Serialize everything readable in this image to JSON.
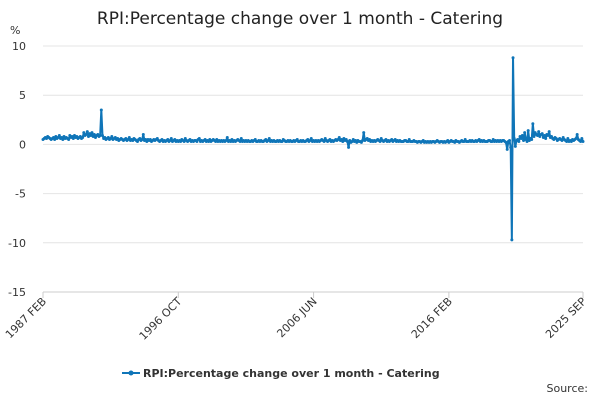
{
  "chart_data": {
    "type": "line",
    "title": "RPI:Percentage change over 1 month - Catering",
    "y_unit": "%",
    "source": "Source:",
    "ylim": [
      -15,
      10
    ],
    "yticks": [
      -15,
      -10,
      -5,
      0,
      5,
      10
    ],
    "grid": true,
    "legend": "bottom",
    "categories": [
      "1987 FEB",
      null,
      null,
      null,
      null,
      null,
      null,
      null,
      null,
      null,
      null,
      null,
      null,
      null,
      null,
      null,
      null,
      null,
      null,
      null,
      null,
      null,
      null,
      null,
      null,
      null,
      null,
      null,
      null,
      null,
      null,
      null,
      null,
      null,
      null,
      null,
      null,
      null,
      null,
      null,
      null,
      null,
      null,
      null,
      null,
      null,
      null,
      null,
      null,
      null,
      null,
      null,
      null,
      null,
      null,
      null,
      null,
      null,
      null,
      null,
      null,
      null,
      null,
      null,
      null,
      null,
      null,
      null,
      null,
      null,
      null,
      null,
      null,
      null,
      null,
      null,
      null,
      null,
      null,
      null,
      null,
      null,
      null,
      null,
      null,
      null,
      null,
      null,
      null,
      null,
      null,
      null,
      null,
      null,
      null,
      null,
      null,
      null,
      null,
      null,
      null,
      null,
      null,
      null,
      null,
      null,
      null,
      null,
      null,
      null,
      null,
      null,
      null,
      null,
      null,
      null,
      "1996 OCT",
      null,
      null,
      null,
      null,
      null,
      null,
      null,
      null,
      null,
      null,
      null,
      null,
      null,
      null,
      null,
      null,
      null,
      null,
      null,
      null,
      null,
      null,
      null,
      null,
      null,
      null,
      null,
      null,
      null,
      null,
      null,
      null,
      null,
      null,
      null,
      null,
      null,
      null,
      null,
      null,
      null,
      null,
      null,
      null,
      null,
      null,
      null,
      null,
      null,
      null,
      null,
      null,
      null,
      null,
      null,
      null,
      null,
      null,
      null,
      null,
      null,
      null,
      null,
      null,
      null,
      null,
      null,
      null,
      null,
      null,
      null,
      null,
      null,
      null,
      null,
      null,
      null,
      null,
      null,
      null,
      null,
      null,
      null,
      null,
      null,
      null,
      null,
      null,
      null,
      null,
      null,
      null,
      null,
      null,
      null,
      null,
      null,
      null,
      null,
      null,
      null,
      null,
      null,
      null,
      null,
      null,
      null,
      null,
      null,
      null,
      null,
      null,
      null,
      null,
      null,
      "2006 JUN",
      null,
      null,
      null,
      null,
      null,
      null,
      null,
      null,
      null,
      null,
      null,
      null,
      null,
      null,
      null,
      null,
      null,
      null,
      null,
      null,
      null,
      null,
      null,
      null,
      null,
      null,
      null,
      null,
      null,
      null,
      null,
      null,
      null,
      null,
      null,
      null,
      null,
      null,
      null,
      null,
      null,
      null,
      null,
      null,
      null,
      null,
      null,
      null,
      null,
      null,
      null,
      null,
      null,
      null,
      null,
      null,
      null,
      null,
      null,
      null,
      null,
      null,
      null,
      null,
      null,
      null,
      null,
      null,
      null,
      null,
      null,
      null,
      null,
      null,
      null,
      null,
      null,
      null,
      null,
      null,
      null,
      null,
      null,
      null,
      null,
      null,
      null,
      null,
      null,
      null,
      null,
      null,
      null,
      null,
      null,
      null,
      null,
      null,
      null,
      null,
      null,
      null,
      null,
      null,
      null,
      null,
      null,
      null,
      null,
      null,
      null,
      null,
      null,
      null,
      null,
      "2016 FEB",
      null,
      null,
      null,
      null,
      null,
      null,
      null,
      null,
      null,
      null,
      null,
      null,
      null,
      null,
      null,
      null,
      null,
      null,
      null,
      null,
      null,
      null,
      null,
      null,
      null,
      null,
      null,
      null,
      null,
      null,
      null,
      null,
      null,
      null,
      null,
      null,
      null,
      null,
      null,
      null,
      null,
      null,
      null,
      null,
      null,
      null,
      null,
      null,
      null,
      null,
      null,
      null,
      null,
      null,
      null,
      null,
      null,
      null,
      null,
      null,
      null,
      null,
      null,
      null,
      null,
      null,
      null,
      null,
      null,
      null,
      null,
      null,
      null,
      null,
      null,
      null,
      null,
      null,
      null,
      null,
      null,
      null,
      null,
      null,
      null,
      null,
      null,
      null,
      null,
      null,
      null,
      null,
      null,
      null,
      null,
      null,
      null,
      null,
      null,
      null,
      null,
      null,
      null,
      null,
      null,
      null,
      null,
      null,
      null,
      null,
      null,
      null,
      null,
      null,
      "2025 SEP"
    ],
    "series": [
      {
        "name": "RPI:Percentage change over 1 month - Catering",
        "color": "#0f75b8",
        "values": [
          0.5,
          0.6,
          0.7,
          0.6,
          0.8,
          0.7,
          0.6,
          0.5,
          0.6,
          0.7,
          0.5,
          0.8,
          0.6,
          0.7,
          0.9,
          0.6,
          0.7,
          0.5,
          0.8,
          0.6,
          0.7,
          0.6,
          0.5,
          0.9,
          0.7,
          0.8,
          0.6,
          0.9,
          0.7,
          0.8,
          0.6,
          0.7,
          0.8,
          0.6,
          0.7,
          1.2,
          0.9,
          1.0,
          1.3,
          0.8,
          1.1,
          0.9,
          1.2,
          0.8,
          1.0,
          0.7,
          0.9,
          1.0,
          0.8,
          0.9,
          3.5,
          0.9,
          0.6,
          0.7,
          0.5,
          0.6,
          0.7,
          0.5,
          0.6,
          0.8,
          0.5,
          0.6,
          0.7,
          0.5,
          0.6,
          0.4,
          0.5,
          0.6,
          0.5,
          0.4,
          0.5,
          0.6,
          0.4,
          0.5,
          0.7,
          0.4,
          0.5,
          0.4,
          0.6,
          0.5,
          0.4,
          0.3,
          0.5,
          0.6,
          0.4,
          0.5,
          1.0,
          0.4,
          0.5,
          0.3,
          0.5,
          0.4,
          0.5,
          0.3,
          0.4,
          0.5,
          0.4,
          0.5,
          0.6,
          0.4,
          0.3,
          0.4,
          0.5,
          0.3,
          0.4,
          0.3,
          0.4,
          0.5,
          0.3,
          0.4,
          0.6,
          0.3,
          0.4,
          0.5,
          0.3,
          0.4,
          0.3,
          0.4,
          0.3,
          0.5,
          0.4,
          0.3,
          0.6,
          0.4,
          0.3,
          0.4,
          0.5,
          0.3,
          0.4,
          0.3,
          0.4,
          0.4,
          0.3,
          0.5,
          0.6,
          0.3,
          0.4,
          0.3,
          0.4,
          0.5,
          0.3,
          0.4,
          0.3,
          0.5,
          0.3,
          0.4,
          0.5,
          0.4,
          0.3,
          0.5,
          0.3,
          0.4,
          0.3,
          0.4,
          0.3,
          0.4,
          0.3,
          0.4,
          0.7,
          0.3,
          0.4,
          0.3,
          0.5,
          0.3,
          0.4,
          0.3,
          0.4,
          0.5,
          0.4,
          0.3,
          0.6,
          0.3,
          0.4,
          0.3,
          0.4,
          0.3,
          0.4,
          0.3,
          0.3,
          0.4,
          0.3,
          0.4,
          0.5,
          0.3,
          0.3,
          0.4,
          0.3,
          0.4,
          0.3,
          0.3,
          0.4,
          0.5,
          0.3,
          0.4,
          0.6,
          0.3,
          0.4,
          0.3,
          0.4,
          0.3,
          0.3,
          0.4,
          0.3,
          0.4,
          0.3,
          0.3,
          0.5,
          0.4,
          0.3,
          0.3,
          0.4,
          0.3,
          0.4,
          0.3,
          0.3,
          0.4,
          0.3,
          0.4,
          0.5,
          0.3,
          0.3,
          0.4,
          0.3,
          0.4,
          0.3,
          0.3,
          0.4,
          0.5,
          0.3,
          0.4,
          0.6,
          0.3,
          0.4,
          0.3,
          0.4,
          0.3,
          0.4,
          0.3,
          0.4,
          0.5,
          0.4,
          0.3,
          0.6,
          0.4,
          0.3,
          0.4,
          0.5,
          0.3,
          0.4,
          0.3,
          0.4,
          0.5,
          0.4,
          0.5,
          0.7,
          0.4,
          0.5,
          0.3,
          0.6,
          0.4,
          0.5,
          0.3,
          -0.3,
          0.4,
          0.2,
          0.3,
          0.5,
          0.3,
          0.4,
          0.2,
          0.4,
          0.3,
          0.3,
          0.2,
          0.4,
          1.2,
          0.4,
          0.5,
          0.6,
          0.4,
          0.5,
          0.3,
          0.4,
          0.3,
          0.4,
          0.3,
          0.4,
          0.5,
          0.4,
          0.3,
          0.6,
          0.4,
          0.3,
          0.4,
          0.5,
          0.3,
          0.4,
          0.3,
          0.4,
          0.5,
          0.3,
          0.4,
          0.5,
          0.3,
          0.4,
          0.3,
          0.4,
          0.3,
          0.3,
          0.3,
          0.4,
          0.4,
          0.3,
          0.3,
          0.5,
          0.3,
          0.3,
          0.3,
          0.4,
          0.3,
          0.3,
          0.2,
          0.3,
          0.3,
          0.2,
          0.3,
          0.4,
          0.2,
          0.3,
          0.2,
          0.3,
          0.2,
          0.3,
          0.2,
          0.3,
          0.3,
          0.2,
          0.3,
          0.4,
          0.3,
          0.2,
          0.3,
          0.3,
          0.2,
          0.3,
          0.2,
          0.3,
          0.4,
          0.2,
          0.3,
          0.4,
          0.3,
          0.3,
          0.2,
          0.4,
          0.3,
          0.3,
          0.2,
          0.3,
          0.4,
          0.3,
          0.3,
          0.5,
          0.3,
          0.3,
          0.3,
          0.4,
          0.3,
          0.4,
          0.3,
          0.3,
          0.4,
          0.3,
          0.4,
          0.5,
          0.3,
          0.4,
          0.3,
          0.4,
          0.3,
          0.3,
          0.3,
          0.4,
          0.4,
          0.3,
          0.3,
          0.5,
          0.3,
          0.4,
          0.3,
          0.4,
          0.3,
          0.4,
          0.3,
          0.4,
          0.4,
          0.3,
          0.2,
          -0.5,
          0.3,
          0.4,
          -0.3,
          -9.7,
          8.8,
          0.6,
          -0.2,
          0.4,
          0.5,
          0.3,
          0.8,
          0.6,
          0.9,
          0.4,
          1.2,
          0.5,
          0.3,
          1.4,
          0.4,
          0.6,
          0.5,
          2.1,
          0.8,
          1.2,
          1.0,
          0.9,
          1.3,
          0.8,
          1.0,
          1.1,
          0.7,
          0.9,
          0.6,
          1.0,
          0.9,
          1.3,
          0.7,
          0.8,
          0.6,
          0.5,
          0.7,
          0.6,
          0.4,
          0.5,
          0.6,
          0.5,
          0.4,
          0.7,
          0.5,
          0.4,
          0.3,
          0.6,
          0.3,
          0.4,
          0.3,
          0.5,
          0.4,
          0.5,
          0.6,
          1.0,
          0.5,
          0.4,
          0.3,
          0.6,
          0.3
        ]
      }
    ]
  }
}
